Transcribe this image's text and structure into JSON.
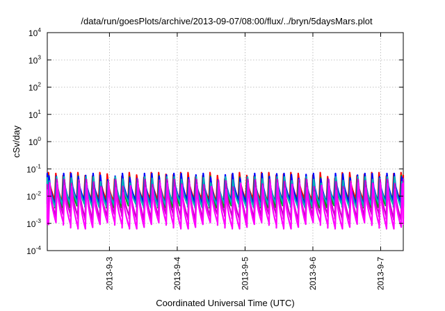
{
  "chart_data": {
    "type": "line",
    "title": "/data/run/goesPlots/archive/2013-09-07/08:00/flux/../bryn/5daysMars.plot",
    "xlabel": "Coordinated Universal Time (UTC)",
    "ylabel": "cSv/day",
    "yscale": "log",
    "ylim": [
      0.0001,
      10000
    ],
    "xlim": [
      "2013-09-02 02:00",
      "2013-09-07 08:00"
    ],
    "grid": true,
    "legend": "none",
    "y_ticks": [
      {
        "base": "10",
        "exp": "4",
        "value": 10000
      },
      {
        "base": "10",
        "exp": "3",
        "value": 1000
      },
      {
        "base": "10",
        "exp": "2",
        "value": 100
      },
      {
        "base": "10",
        "exp": "1",
        "value": 10
      },
      {
        "base": "10",
        "exp": "0",
        "value": 1
      },
      {
        "base": "10",
        "exp": "-1",
        "value": 0.1
      },
      {
        "base": "10",
        "exp": "-2",
        "value": 0.01
      },
      {
        "base": "10",
        "exp": "-3",
        "value": 0.001
      },
      {
        "base": "10",
        "exp": "-4",
        "value": 0.0001
      }
    ],
    "x_ticks": [
      {
        "label": "2013-9-3",
        "value": "2013-09-03 00:00"
      },
      {
        "label": "2013-9-4",
        "value": "2013-09-04 00:00"
      },
      {
        "label": "2013-9-5",
        "value": "2013-09-05 00:00"
      },
      {
        "label": "2013-9-6",
        "value": "2013-09-06 00:00"
      },
      {
        "label": "2013-9-7",
        "value": "2013-09-07 00:00"
      }
    ],
    "series": [
      {
        "color": "#ff0000",
        "range": [
          0.006,
          0.065
        ]
      },
      {
        "color": "#00aa00",
        "range": [
          0.004,
          0.05
        ]
      },
      {
        "color": "#0000ff",
        "range": [
          0.005,
          0.06
        ]
      },
      {
        "color": "#00b5b5",
        "range": [
          0.004,
          0.045
        ]
      },
      {
        "color": "#cc00cc",
        "range": [
          0.0015,
          0.035
        ]
      },
      {
        "color": "#ff00ff",
        "range": [
          0.0007,
          0.025
        ]
      }
    ],
    "pulse_period_hours": 2.6,
    "colors": {
      "axis": "#000000",
      "grid": "#b0b0b0",
      "background": "#ffffff"
    }
  }
}
